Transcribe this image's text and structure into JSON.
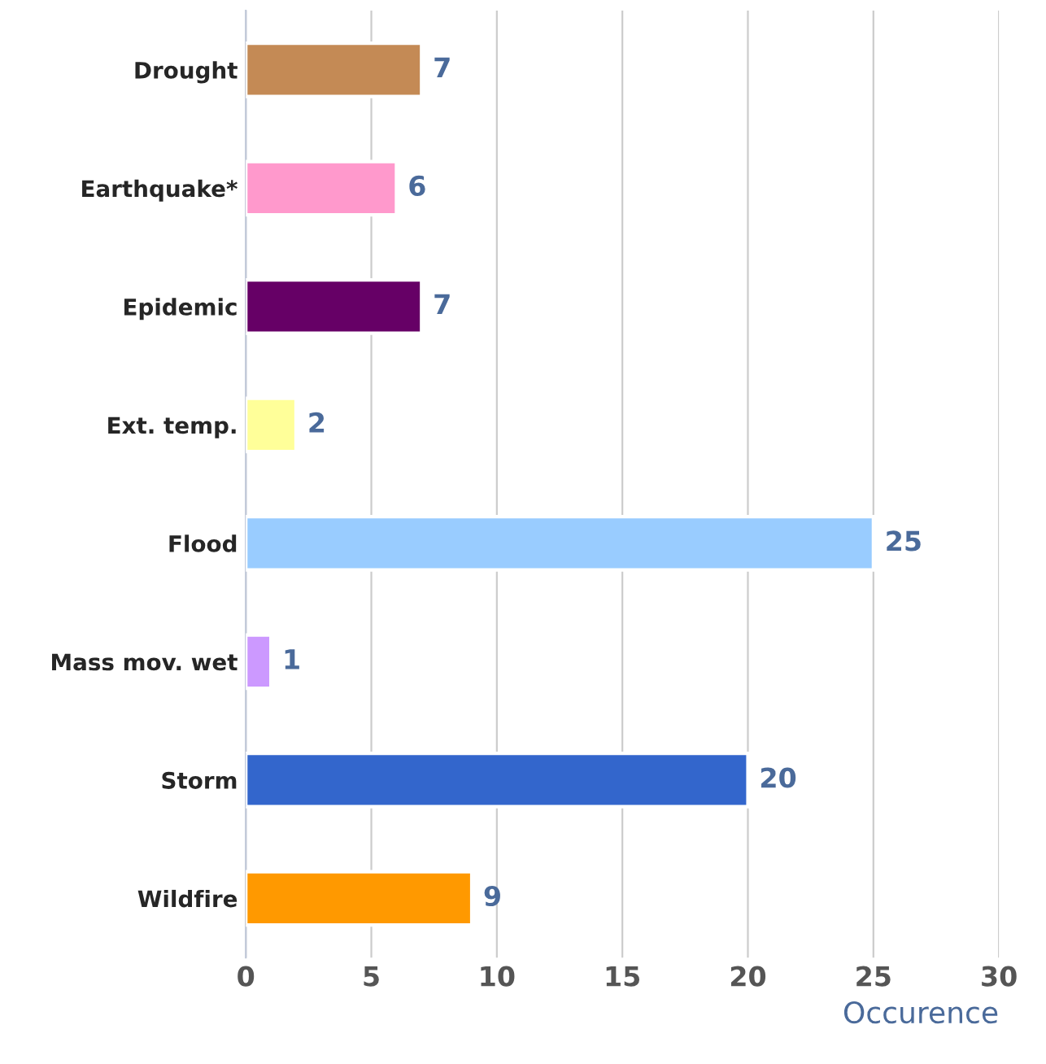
{
  "chart_data": {
    "type": "bar",
    "orientation": "horizontal",
    "xlabel": "Occurence",
    "categories": [
      "Drought",
      "Earthquake*",
      "Epidemic",
      "Ext. temp.",
      "Flood",
      "Mass mov. wet",
      "Storm",
      "Wildfire"
    ],
    "values": [
      7,
      6,
      7,
      2,
      25,
      1,
      20,
      9
    ],
    "colors": [
      "#c48a55",
      "#ff99cc",
      "#660066",
      "#ffff99",
      "#99ccff",
      "#cc99ff",
      "#3366cc",
      "#ff9900"
    ],
    "xlim": [
      0,
      30
    ],
    "xticks": [
      0,
      5,
      10,
      15,
      20,
      25,
      30
    ],
    "grid": "x",
    "data_labels": true
  }
}
